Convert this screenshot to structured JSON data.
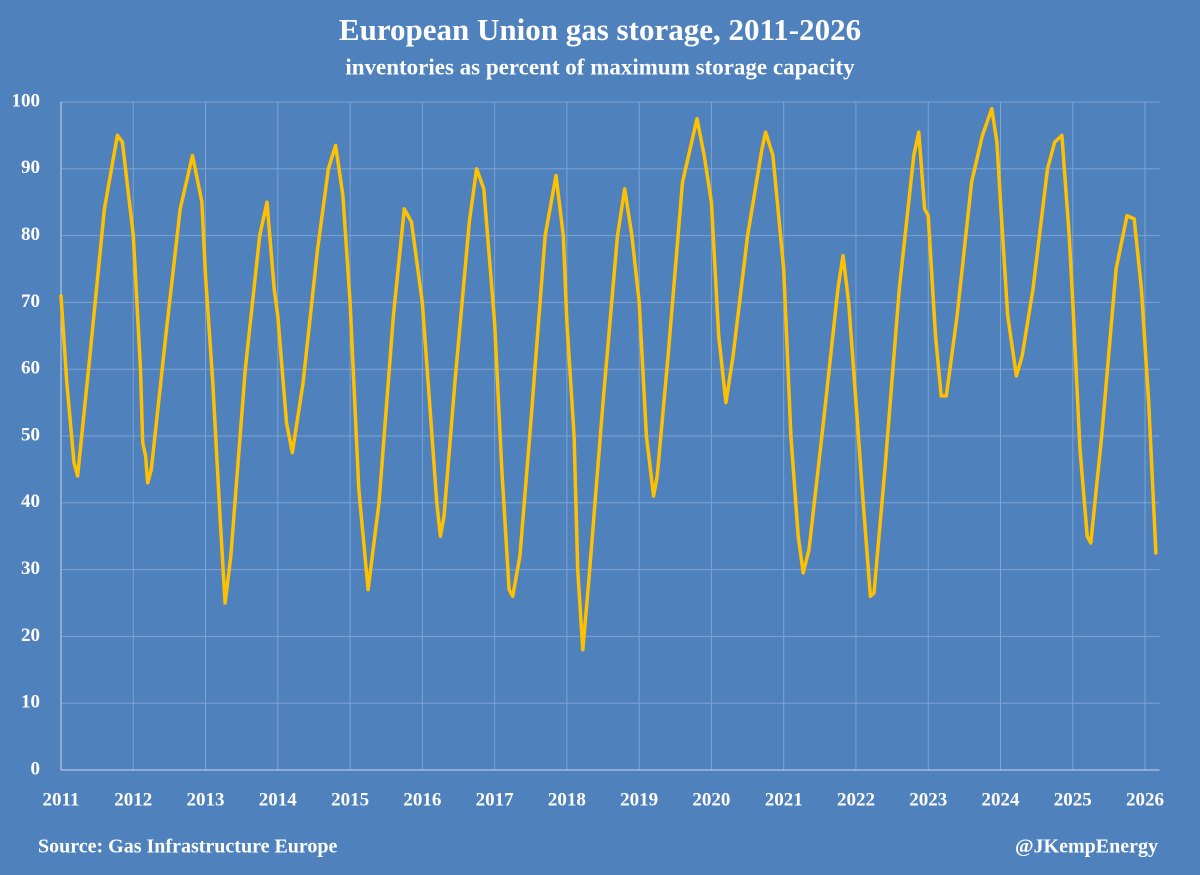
{
  "chart_data": {
    "type": "line",
    "title": "European Union gas storage, 2011-2026",
    "subtitle": "inventories as percent of maximum storage capacity",
    "source": "Source: Gas Infrastructure Europe",
    "credit": "@JKempEnergy",
    "color": "#ffc000",
    "grid": true,
    "xlim": [
      2011,
      2026.2
    ],
    "xticks": [
      2011,
      2012,
      2013,
      2014,
      2015,
      2016,
      2017,
      2018,
      2019,
      2020,
      2021,
      2022,
      2023,
      2024,
      2025,
      2026
    ],
    "ylim": [
      0,
      100
    ],
    "yticks": [
      0,
      10,
      20,
      30,
      40,
      50,
      60,
      70,
      80,
      90,
      100
    ],
    "x": [
      2011.0,
      2011.08,
      2011.18,
      2011.23,
      2011.4,
      2011.6,
      2011.78,
      2011.85,
      2012.0,
      2012.1,
      2012.13,
      2012.17,
      2012.2,
      2012.25,
      2012.45,
      2012.65,
      2012.82,
      2012.95,
      2013.0,
      2013.1,
      2013.2,
      2013.27,
      2013.35,
      2013.55,
      2013.75,
      2013.85,
      2013.95,
      2014.0,
      2014.12,
      2014.2,
      2014.35,
      2014.55,
      2014.7,
      2014.8,
      2014.9,
      2015.0,
      2015.12,
      2015.25,
      2015.4,
      2015.6,
      2015.75,
      2015.85,
      2016.0,
      2016.1,
      2016.2,
      2016.25,
      2016.3,
      2016.45,
      2016.65,
      2016.75,
      2016.85,
      2017.0,
      2017.1,
      2017.2,
      2017.25,
      2017.35,
      2017.5,
      2017.7,
      2017.85,
      2017.95,
      2018.0,
      2018.1,
      2018.15,
      2018.22,
      2018.3,
      2018.5,
      2018.7,
      2018.8,
      2018.9,
      2019.0,
      2019.1,
      2019.2,
      2019.25,
      2019.4,
      2019.6,
      2019.8,
      2019.9,
      2020.0,
      2020.1,
      2020.2,
      2020.3,
      2020.5,
      2020.7,
      2020.75,
      2020.85,
      2021.0,
      2021.1,
      2021.2,
      2021.27,
      2021.35,
      2021.55,
      2021.75,
      2021.82,
      2021.9,
      2022.0,
      2022.1,
      2022.2,
      2022.25,
      2022.4,
      2022.6,
      2022.8,
      2022.87,
      2022.95,
      2023.0,
      2023.1,
      2023.18,
      2023.25,
      2023.4,
      2023.6,
      2023.75,
      2023.88,
      2023.95,
      2024.0,
      2024.1,
      2024.22,
      2024.3,
      2024.45,
      2024.65,
      2024.75,
      2024.85,
      2024.95,
      2025.0,
      2025.1,
      2025.2,
      2025.25,
      2025.4,
      2025.6,
      2025.75,
      2025.85,
      2025.95,
      2026.05,
      2026.15
    ],
    "values": [
      71,
      58,
      46,
      44,
      62,
      84,
      95,
      94,
      80,
      60,
      49,
      47,
      43,
      45,
      65,
      84,
      92,
      85,
      74,
      58,
      38,
      25,
      32,
      60,
      80,
      85,
      72,
      68,
      52,
      47.5,
      58,
      78,
      90,
      93.5,
      86,
      70,
      42,
      27,
      40,
      68,
      84,
      82,
      70,
      55,
      40,
      35,
      38,
      58,
      82,
      90,
      87,
      67,
      45,
      27,
      26,
      32,
      52,
      80,
      89,
      80,
      67,
      50,
      30,
      18,
      28,
      55,
      80,
      87,
      80,
      70,
      50,
      41,
      44,
      62,
      88,
      97.5,
      92,
      85,
      65,
      55,
      62,
      80,
      93,
      95.5,
      92,
      75,
      50,
      35,
      29.5,
      33,
      52,
      72,
      77,
      70,
      55,
      40,
      26,
      26.5,
      45,
      72,
      92,
      95.5,
      84,
      83,
      65,
      56,
      56,
      68,
      88,
      95,
      99,
      94,
      85,
      68,
      59,
      62,
      72,
      90,
      94,
      95,
      80,
      70,
      48,
      35,
      34,
      50,
      75,
      83,
      82.5,
      72,
      55,
      32.5
    ]
  }
}
